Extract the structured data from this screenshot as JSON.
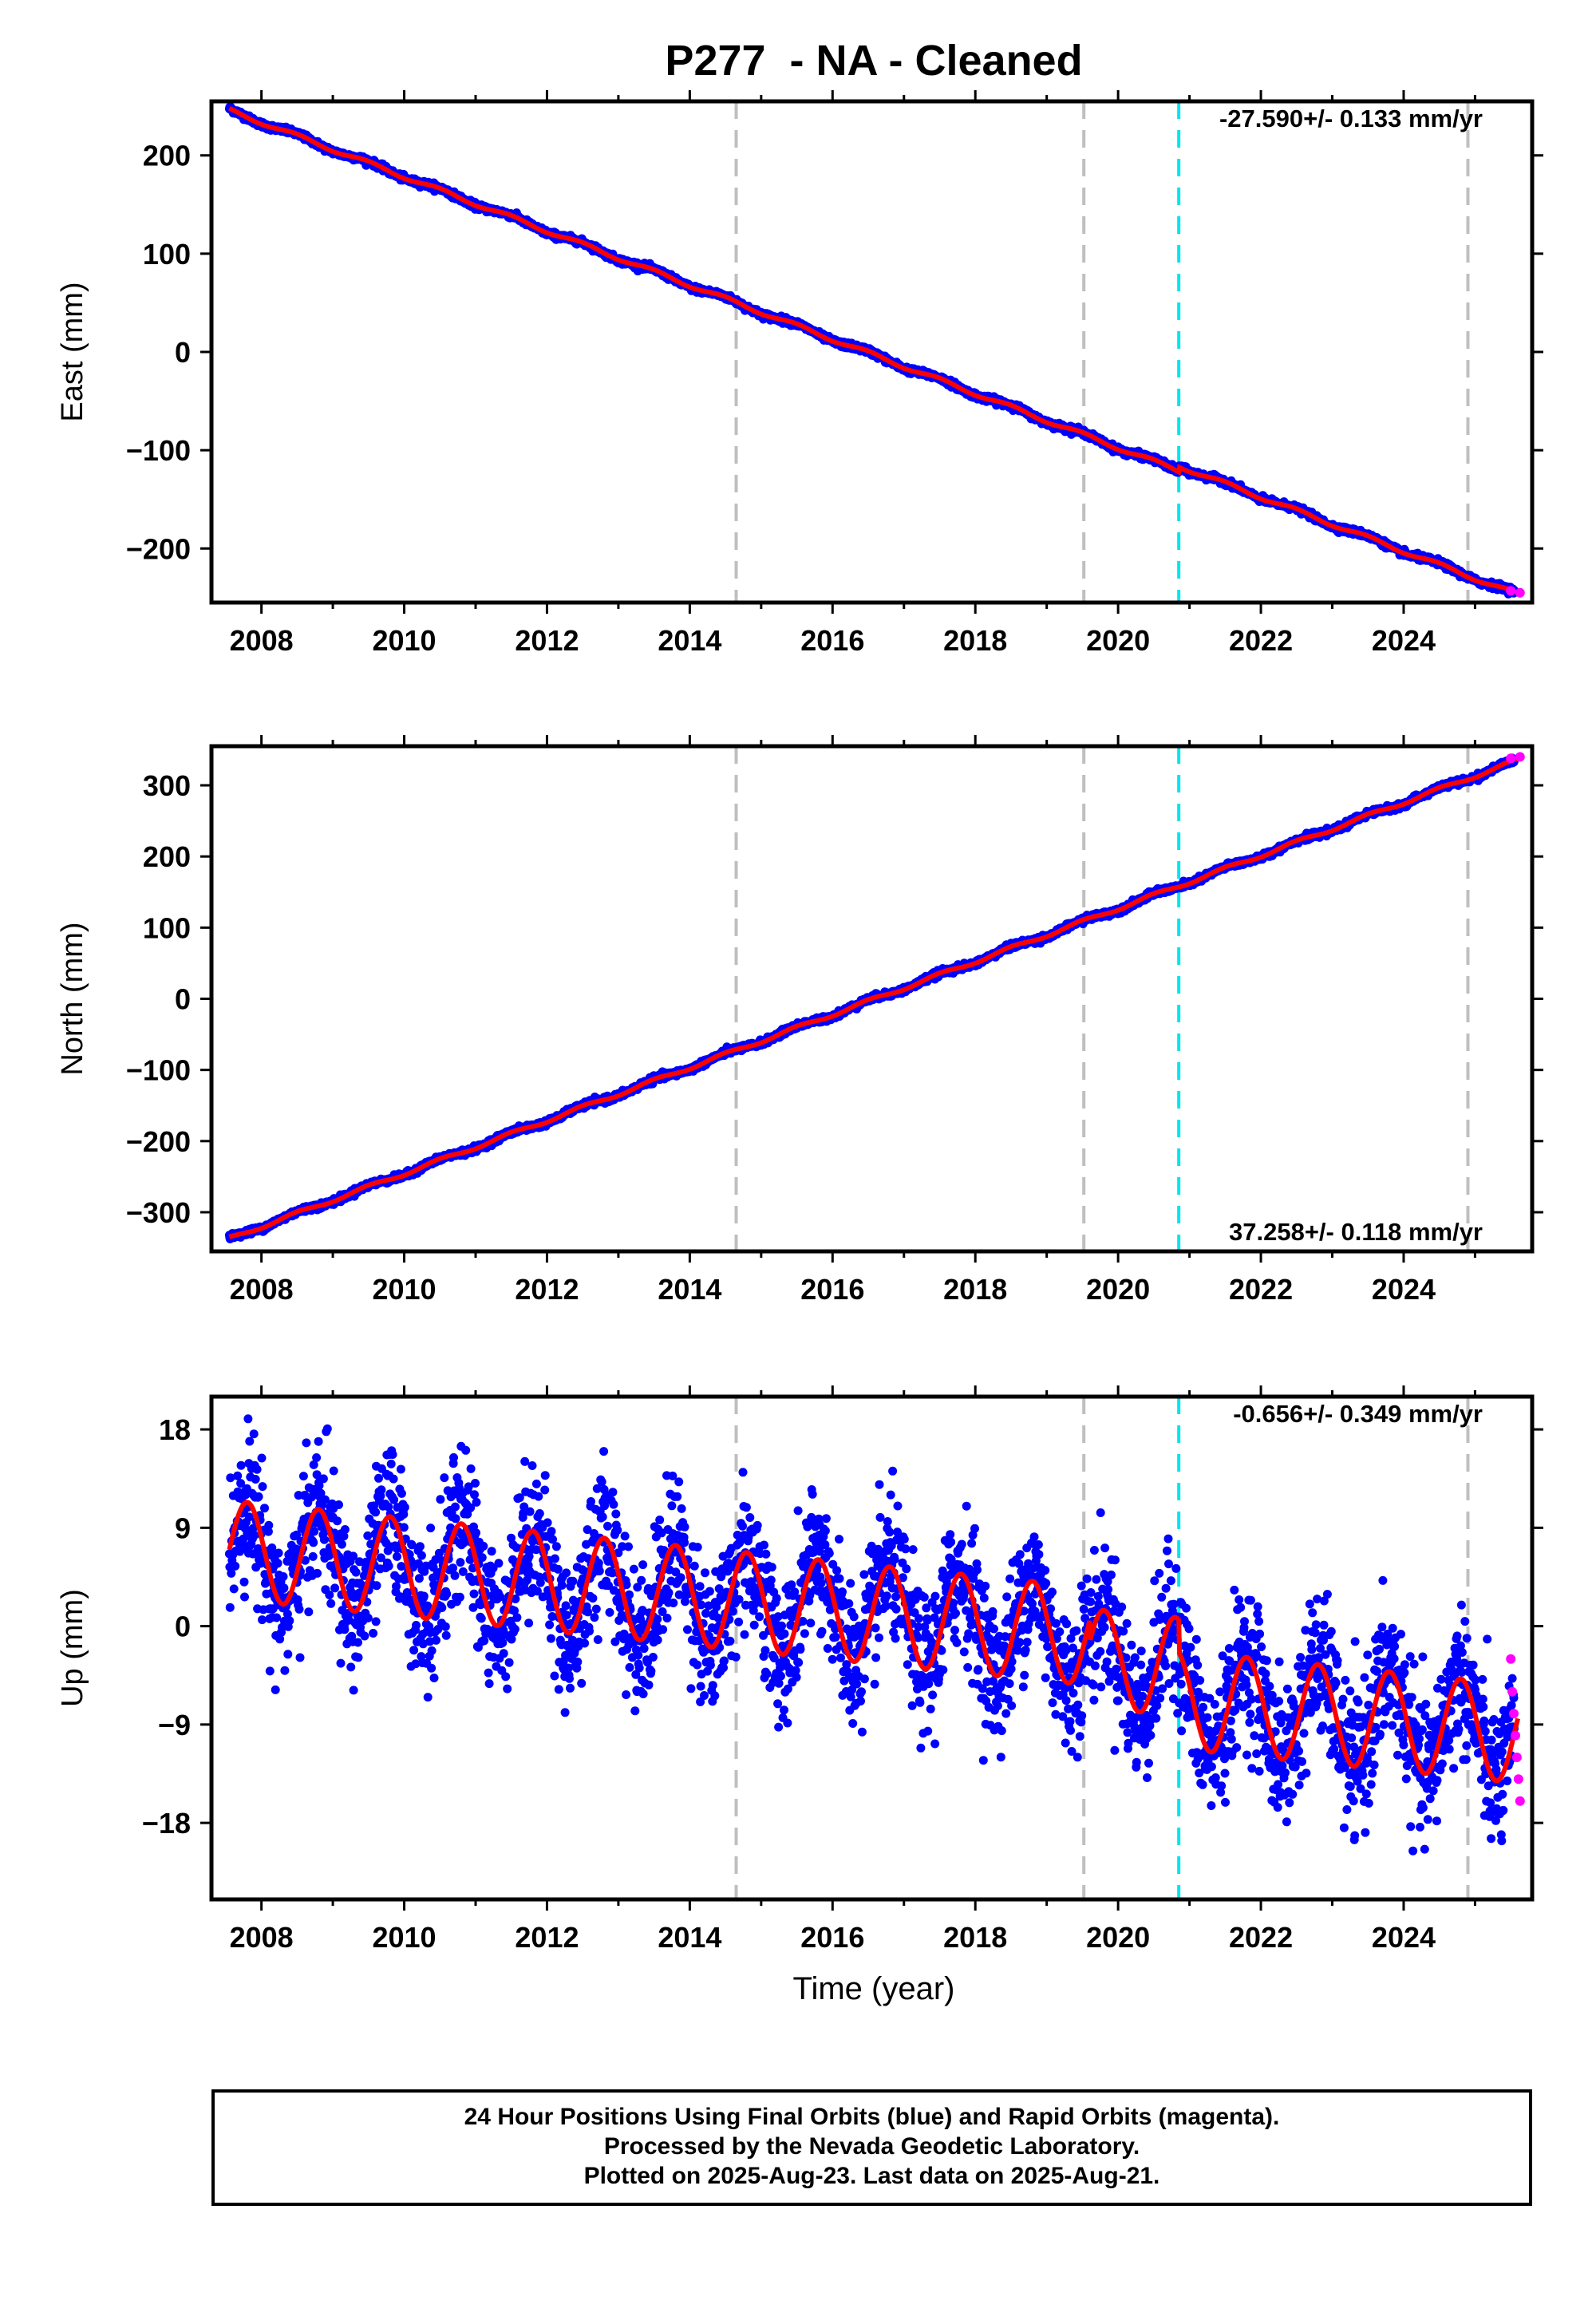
{
  "title": "P277  - NA - Cleaned",
  "xlabel": "Time (year)",
  "footer": {
    "line1": "24 Hour Positions Using Final Orbits (blue) and Rapid Orbits (magenta).",
    "line2": "Processed by the Nevada Geodetic Laboratory.",
    "line3": "Plotted on 2025-Aug-23. Last data on 2025-Aug-21."
  },
  "colors": {
    "final_orbits": "#0000ff",
    "rapid_orbits": "#ff00ff",
    "model": "#ff0000",
    "equipment_change": "#bfbfbf",
    "other_event": "#00e5ee"
  },
  "chart_data": [
    {
      "type": "scatter",
      "panel": "east",
      "ylabel": "East (mm)",
      "rate_text": "-27.590+/- 0.133 mm/yr",
      "rate_position": "top-right",
      "xlim": [
        2007.3,
        2025.8
      ],
      "ylim": [
        -255,
        255
      ],
      "yticks": [
        -200,
        -100,
        0,
        100,
        200
      ],
      "xticks": [
        2008,
        2010,
        2012,
        2014,
        2016,
        2018,
        2020,
        2022,
        2024
      ],
      "vlines_gray": [
        2014.65,
        2019.52,
        2024.9
      ],
      "vline_cyan": 2020.85,
      "model": {
        "rate": -27.59,
        "value_at_start": 246,
        "start": 2007.55,
        "end": 2025.6,
        "seasonal_amplitude": 2,
        "offsets": [
          {
            "at": 2020.85,
            "value": 5
          }
        ]
      },
      "final_orbits": {
        "start": 2007.55,
        "end": 2025.55,
        "scatter": 1.5
      },
      "rapid_orbits": {
        "start": 2025.5,
        "end": 2025.63,
        "values_approx": [
          -243,
          -245
        ]
      }
    },
    {
      "type": "scatter",
      "panel": "north",
      "ylabel": "North (mm)",
      "rate_text": "37.258+/- 0.118 mm/yr",
      "rate_position": "bottom-right",
      "xlim": [
        2007.3,
        2025.8
      ],
      "ylim": [
        -355,
        355
      ],
      "yticks": [
        -300,
        -200,
        -100,
        0,
        100,
        200,
        300
      ],
      "xticks": [
        2008,
        2010,
        2012,
        2014,
        2016,
        2018,
        2020,
        2022,
        2024
      ],
      "vlines_gray": [
        2014.65,
        2019.52,
        2024.9
      ],
      "vline_cyan": 2020.85,
      "model": {
        "rate": 37.258,
        "value_at_start": -337,
        "start": 2007.55,
        "end": 2025.6,
        "seasonal_amplitude": 2.5,
        "offsets": []
      },
      "final_orbits": {
        "start": 2007.55,
        "end": 2025.55,
        "scatter": 2
      },
      "rapid_orbits": {
        "start": 2025.5,
        "end": 2025.63,
        "values_approx": [
          338,
          340
        ]
      }
    },
    {
      "type": "scatter",
      "panel": "up",
      "ylabel": "Up (mm)",
      "rate_text": "-0.656+/- 0.349 mm/yr",
      "rate_position": "top-right",
      "xlim": [
        2007.3,
        2025.8
      ],
      "ylim": [
        -25,
        21
      ],
      "yticks": [
        -18,
        -9,
        0,
        9,
        18
      ],
      "xticks": [
        2008,
        2010,
        2012,
        2014,
        2016,
        2018,
        2020,
        2022,
        2024
      ],
      "vlines_gray": [
        2014.65,
        2019.52,
        2024.9
      ],
      "vline_cyan": 2020.85,
      "model": {
        "rate": -0.656,
        "value_at_start": 7,
        "start": 2007.55,
        "end": 2025.6,
        "seasonal_amplitude": 4.5,
        "peak_phase": 0.8,
        "offsets": [
          {
            "at": 2019.6,
            "value": -2
          },
          {
            "at": 2020.85,
            "value": -3
          }
        ]
      },
      "final_orbits": {
        "start": 2007.55,
        "end": 2025.55,
        "scatter": 3.2
      },
      "rapid_orbits": {
        "start": 2025.5,
        "end": 2025.63,
        "values_approx": [
          -3,
          -6,
          -8,
          -10,
          -12,
          -14,
          -16
        ]
      }
    }
  ]
}
